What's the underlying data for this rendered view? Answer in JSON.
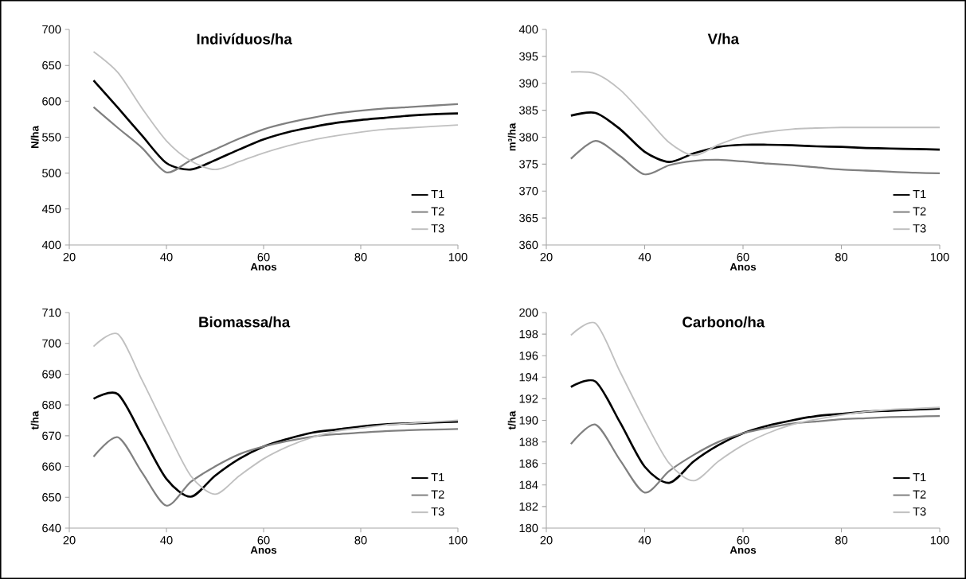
{
  "chart_data": [
    {
      "type": "line",
      "title": "Indivíduos/ha",
      "xlabel": "Anos",
      "ylabel": "N/ha",
      "xlim": [
        20,
        100
      ],
      "xticks": [
        20,
        40,
        60,
        80,
        100
      ],
      "ylim": [
        400,
        700
      ],
      "yticks": [
        400,
        450,
        500,
        550,
        600,
        650,
        700
      ],
      "legend": "bottom right",
      "line_style": "solid",
      "grid": false,
      "x": [
        25,
        30,
        35,
        40,
        45,
        50,
        55,
        60,
        65,
        70,
        75,
        80,
        85,
        90,
        95,
        100
      ],
      "series": [
        {
          "name": "T1",
          "color": "#000000",
          "values": [
            629,
            591,
            552,
            514,
            505,
            518,
            533,
            547,
            557,
            564,
            570,
            574,
            577,
            580,
            582,
            583
          ]
        },
        {
          "name": "T2",
          "color": "#808080",
          "values": [
            592,
            563,
            535,
            501,
            518,
            533,
            548,
            561,
            570,
            577,
            583,
            587,
            590,
            592,
            594,
            596
          ]
        },
        {
          "name": "T3",
          "color": "#c0c0c0",
          "values": [
            669,
            640,
            590,
            545,
            517,
            505,
            516,
            528,
            538,
            546,
            552,
            557,
            561,
            563,
            565,
            567
          ]
        }
      ]
    },
    {
      "type": "line",
      "title": "V/ha",
      "xlabel": "Anos",
      "ylabel": "m³/ha",
      "xlim": [
        20,
        100
      ],
      "xticks": [
        20,
        40,
        60,
        80,
        100
      ],
      "ylim": [
        360,
        400
      ],
      "yticks": [
        360,
        365,
        370,
        375,
        380,
        385,
        390,
        395,
        400
      ],
      "legend": "bottom right",
      "line_style": "solid",
      "grid": false,
      "x": [
        25,
        30,
        35,
        40,
        45,
        50,
        55,
        60,
        65,
        70,
        75,
        80,
        85,
        90,
        95,
        100
      ],
      "series": [
        {
          "name": "T1",
          "color": "#000000",
          "values": [
            384.0,
            384.5,
            381.5,
            377.3,
            375.4,
            377.0,
            378.2,
            378.6,
            378.6,
            378.5,
            378.3,
            378.2,
            378.0,
            377.9,
            377.8,
            377.7
          ]
        },
        {
          "name": "T2",
          "color": "#808080",
          "values": [
            376.0,
            379.3,
            376.5,
            373.1,
            374.8,
            375.6,
            375.8,
            375.5,
            375.1,
            374.8,
            374.4,
            374.0,
            373.8,
            373.6,
            373.4,
            373.3
          ]
        },
        {
          "name": "T3",
          "color": "#c0c0c0",
          "values": [
            392.1,
            391.8,
            388.8,
            384.0,
            379.0,
            376.6,
            378.6,
            380.2,
            381.0,
            381.5,
            381.7,
            381.8,
            381.8,
            381.8,
            381.8,
            381.8
          ]
        }
      ]
    },
    {
      "type": "line",
      "title": "Biomassa/ha",
      "xlabel": "Anos",
      "ylabel": "t/ha",
      "xlim": [
        20,
        100
      ],
      "xticks": [
        20,
        40,
        60,
        80,
        100
      ],
      "ylim": [
        640,
        710
      ],
      "yticks": [
        640,
        650,
        660,
        670,
        680,
        690,
        700,
        710
      ],
      "legend": "bottom right",
      "line_style": "solid",
      "grid": false,
      "x": [
        25,
        30,
        35,
        40,
        45,
        50,
        55,
        60,
        65,
        70,
        75,
        80,
        85,
        90,
        95,
        100
      ],
      "series": [
        {
          "name": "T1",
          "color": "#000000",
          "values": [
            682,
            683.5,
            670,
            656,
            650.2,
            657,
            662.5,
            666.5,
            669,
            671,
            672,
            673,
            673.7,
            674,
            674.3,
            674.6
          ]
        },
        {
          "name": "T2",
          "color": "#808080",
          "values": [
            663.2,
            669.5,
            658,
            647.3,
            655,
            660,
            664,
            666.5,
            668.3,
            669.7,
            670.5,
            671,
            671.5,
            671.8,
            672,
            672.2
          ]
        },
        {
          "name": "T3",
          "color": "#c0c0c0",
          "values": [
            699,
            703,
            688,
            672,
            657,
            651,
            657,
            662.5,
            666.5,
            669.5,
            671.5,
            672.5,
            673.5,
            674,
            674.5,
            675
          ]
        }
      ]
    },
    {
      "type": "line",
      "title": "Carbono/ha",
      "xlabel": "Anos",
      "ylabel": "t/ha",
      "xlim": [
        20,
        100
      ],
      "xticks": [
        20,
        40,
        60,
        80,
        100
      ],
      "ylim": [
        180,
        200
      ],
      "yticks": [
        180,
        182,
        184,
        186,
        188,
        190,
        192,
        194,
        196,
        198,
        200
      ],
      "legend": "bottom right",
      "line_style": "solid",
      "grid": false,
      "x": [
        25,
        30,
        35,
        40,
        45,
        50,
        55,
        60,
        65,
        70,
        75,
        80,
        85,
        90,
        95,
        100
      ],
      "series": [
        {
          "name": "T1",
          "color": "#000000",
          "values": [
            193.1,
            193.6,
            189.8,
            185.7,
            184.2,
            186.2,
            187.7,
            188.8,
            189.5,
            190.0,
            190.4,
            190.6,
            190.8,
            190.9,
            191.0,
            191.1
          ]
        },
        {
          "name": "T2",
          "color": "#808080",
          "values": [
            187.8,
            189.6,
            186.3,
            183.3,
            185.3,
            186.8,
            188.0,
            188.8,
            189.3,
            189.7,
            189.9,
            190.1,
            190.2,
            190.3,
            190.35,
            190.4
          ]
        },
        {
          "name": "T3",
          "color": "#c0c0c0",
          "values": [
            197.9,
            199.0,
            194.5,
            190.0,
            186.0,
            184.4,
            186.2,
            187.7,
            188.8,
            189.6,
            190.1,
            190.5,
            190.8,
            191.0,
            191.1,
            191.2
          ]
        }
      ]
    }
  ]
}
